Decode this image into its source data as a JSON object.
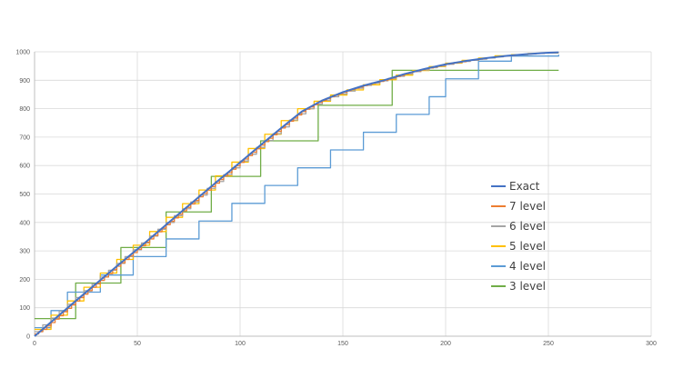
{
  "chart_data": {
    "type": "line",
    "title": "",
    "xlabel": "",
    "ylabel": "",
    "xlim": [
      0,
      300
    ],
    "ylim": [
      0,
      1000
    ],
    "x_ticks": [
      0,
      50,
      100,
      150,
      200,
      250,
      300
    ],
    "y_ticks": [
      0,
      100,
      200,
      300,
      400,
      500,
      600,
      700,
      800,
      900,
      1000
    ],
    "grid": true,
    "legend_position": "right",
    "series": [
      {
        "name": "Exact",
        "color": "#4472c4",
        "style": "smooth",
        "x": [
          0,
          10,
          20,
          30,
          40,
          50,
          60,
          70,
          80,
          90,
          100,
          110,
          120,
          130,
          140,
          150,
          160,
          170,
          180,
          190,
          200,
          210,
          220,
          230,
          240,
          250,
          255
        ],
        "y": [
          0,
          62,
          124,
          185,
          246,
          306,
          367,
          429,
          490,
          551,
          611,
          672,
          732,
          790,
          829,
          858,
          881,
          900,
          922,
          940,
          956,
          968,
          978,
          986,
          992,
          997,
          998
        ]
      },
      {
        "name": "7 level",
        "color": "#ed7d31",
        "style": "steps",
        "x": [
          0,
          2,
          4,
          6,
          8,
          10,
          12,
          14,
          16,
          18,
          20,
          22,
          24,
          26,
          28,
          30,
          32,
          34,
          36,
          38,
          40,
          42,
          44,
          46,
          48,
          50,
          52,
          54,
          56,
          58,
          60,
          62,
          64,
          66,
          68,
          70,
          72,
          74,
          76,
          78,
          80,
          82,
          84,
          86,
          88,
          90,
          92,
          94,
          96,
          98,
          100,
          102,
          104,
          106,
          108,
          110,
          112,
          114,
          116,
          118,
          120,
          122,
          124,
          126,
          128,
          130,
          132,
          134,
          136,
          138,
          140,
          142,
          144,
          146,
          148,
          150,
          152,
          154,
          156,
          158,
          160,
          162,
          164,
          166,
          168,
          170,
          172,
          174,
          176,
          178,
          180,
          182,
          184,
          186,
          188,
          190,
          192,
          194,
          196,
          198,
          200,
          202,
          204,
          206,
          208,
          210,
          212,
          214,
          216,
          218,
          220,
          222,
          224,
          226,
          228,
          230,
          232,
          234,
          236,
          238,
          240,
          242,
          244,
          246,
          248,
          250,
          252,
          254
        ],
        "y": [
          8,
          16,
          24,
          36,
          48,
          60,
          72,
          86,
          98,
          110,
          124,
          136,
          148,
          160,
          172,
          184,
          196,
          208,
          220,
          234,
          246,
          258,
          270,
          282,
          294,
          306,
          318,
          330,
          342,
          354,
          367,
          380,
          392,
          404,
          416,
          429,
          441,
          453,
          465,
          477,
          490,
          502,
          514,
          526,
          538,
          551,
          563,
          575,
          587,
          599,
          611,
          623,
          635,
          647,
          659,
          672,
          684,
          696,
          708,
          720,
          732,
          744,
          756,
          767,
          778,
          790,
          798,
          806,
          814,
          822,
          829,
          836,
          842,
          848,
          853,
          858,
          863,
          868,
          872,
          876,
          881,
          885,
          889,
          893,
          896,
          900,
          904,
          909,
          913,
          917,
          922,
          926,
          930,
          933,
          937,
          940,
          943,
          947,
          950,
          953,
          956,
          958,
          961,
          963,
          965,
          968,
          970,
          972,
          974,
          976,
          978,
          980,
          982,
          983,
          985,
          986,
          987,
          989,
          990,
          991,
          992,
          993,
          994,
          995,
          996,
          997,
          997,
          998
        ]
      },
      {
        "name": "6 level",
        "color": "#a5a5a5",
        "style": "steps",
        "x": [
          0,
          4,
          8,
          12,
          16,
          20,
          24,
          28,
          32,
          36,
          40,
          44,
          48,
          52,
          56,
          60,
          64,
          68,
          72,
          76,
          80,
          84,
          88,
          92,
          96,
          100,
          104,
          108,
          112,
          116,
          120,
          124,
          128,
          132,
          136,
          140,
          144,
          148,
          152,
          156,
          160,
          164,
          168,
          172,
          176,
          180,
          184,
          188,
          192,
          196,
          200,
          204,
          208,
          212,
          216,
          220,
          224,
          228,
          232,
          236,
          240,
          244,
          248,
          252
        ],
        "y": [
          16,
          40,
          64,
          88,
          112,
          136,
          160,
          184,
          208,
          232,
          256,
          280,
          304,
          328,
          352,
          376,
          400,
          424,
          448,
          472,
          496,
          520,
          544,
          568,
          592,
          616,
          640,
          664,
          688,
          712,
          736,
          760,
          782,
          800,
          816,
          830,
          842,
          852,
          862,
          872,
          882,
          890,
          898,
          906,
          914,
          922,
          930,
          936,
          944,
          950,
          956,
          962,
          966,
          970,
          974,
          978,
          982,
          985,
          988,
          990,
          992,
          994,
          996,
          997
        ]
      },
      {
        "name": "5 level",
        "color": "#ffc000",
        "style": "steps",
        "x": [
          0,
          8,
          16,
          24,
          32,
          40,
          48,
          56,
          64,
          72,
          80,
          88,
          96,
          104,
          112,
          120,
          128,
          136,
          144,
          152,
          160,
          168,
          176,
          184,
          192,
          200,
          208,
          216,
          224,
          232,
          240,
          248
        ],
        "y": [
          24,
          74,
          124,
          172,
          222,
          270,
          320,
          368,
          418,
          466,
          514,
          564,
          612,
          660,
          710,
          758,
          800,
          826,
          848,
          866,
          884,
          902,
          918,
          934,
          948,
          960,
          970,
          978,
          986,
          990,
          994,
          996
        ]
      },
      {
        "name": "4 level",
        "color": "#5b9bd5",
        "style": "steps",
        "x": [
          0,
          8,
          16,
          32,
          48,
          64,
          80,
          96,
          112,
          128,
          144,
          160,
          176,
          192,
          200,
          216,
          232,
          255
        ],
        "y": [
          30,
          90,
          155,
          215,
          280,
          342,
          405,
          467,
          530,
          592,
          655,
          717,
          780,
          842,
          905,
          967,
          985,
          990
        ]
      },
      {
        "name": "3 level",
        "color": "#70ad47",
        "style": "steps",
        "x": [
          0,
          20,
          42,
          64,
          86,
          110,
          138,
          156,
          174,
          200,
          220,
          255
        ],
        "y": [
          62,
          187,
          312,
          437,
          562,
          687,
          812,
          812,
          935,
          935,
          935,
          935
        ]
      }
    ]
  }
}
